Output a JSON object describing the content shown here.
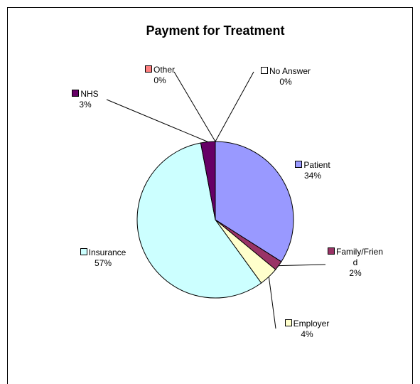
{
  "chart_data": {
    "type": "pie",
    "title": "Payment for Treatment",
    "categories": [
      "Patient",
      "Family/Friend",
      "Employer",
      "Insurance",
      "NHS",
      "Other",
      "No Answer"
    ],
    "values": [
      34,
      2,
      4,
      57,
      3,
      0,
      0
    ],
    "value_labels": [
      "34%",
      "2%",
      "4%",
      "57%",
      "3%",
      "0%",
      "0%"
    ],
    "colors": [
      "#9999ff",
      "#993366",
      "#ffffcc",
      "#ccffff",
      "#660066",
      "#ff8080",
      "#ffffff"
    ]
  }
}
